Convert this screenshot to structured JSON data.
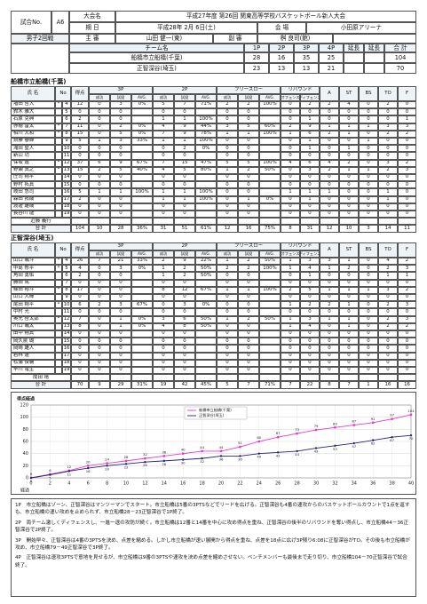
{
  "header": {
    "match_no_label": "試合No.",
    "match_no": "A6",
    "tournament_label": "大会名",
    "tournament": "平成27年度 第26回 関東高等学校バスケットボール新人大会",
    "date_label": "期 日",
    "date": "平成28年 2月 6日(土)",
    "venue_label": "会 場",
    "venue": "小田原アリーナ",
    "round": "男子2回戦",
    "referee_label": "主 審",
    "referee": "山田 健一(東)",
    "umpire_label": "副 審",
    "umpire": "桝 良司(館)"
  },
  "score": {
    "team_label": "チーム名",
    "period_labels": [
      "1P",
      "2P",
      "3P",
      "4P",
      "延長",
      "延長"
    ],
    "total_label": "合 計",
    "rows": [
      {
        "team": "船橋市立船橋(千葉)",
        "periods": [
          28,
          16,
          35,
          25
        ],
        "total": 104
      },
      {
        "team": "正智深谷(埼玉)",
        "periods": [
          23,
          13,
          13,
          21
        ],
        "total": 70
      }
    ]
  },
  "stat_headers": {
    "name": "氏 名",
    "no": "No",
    "points": "得点",
    "three": "3P",
    "two": "2P",
    "ft": "フリースロー",
    "reb": "リバウンド",
    "made": "成功",
    "att": "試投",
    "avg": "AVG.",
    "off": "オフェンス",
    "def": "ディフェンス",
    "a": "A",
    "st": "ST",
    "bs": "BS",
    "to": "TO",
    "f": "F"
  },
  "teams": [
    {
      "name": "船橋市立船橋(千葉)",
      "players": [
        {
          "name": "増田 哲大",
          "mark": "*",
          "no": 4,
          "stats": [
            12,
            0,
            3,
            "0%",
            5,
            7,
            "71%",
            2,
            2,
            "100%",
            0,
            2,
            2,
            4,
            0,
            2,
            0
          ]
        },
        {
          "name": "鈴木 雅大",
          "no": 5,
          "stats": [
            0,
            0,
            0,
            null,
            0,
            0,
            null,
            0,
            0,
            null,
            0,
            0,
            0,
            0,
            0,
            0,
            0
          ]
        },
        {
          "name": "石原 克典",
          "no": 6,
          "stats": [
            2,
            0,
            0,
            null,
            1,
            1,
            "100%",
            0,
            0,
            null,
            0,
            1,
            0,
            0,
            0,
            0,
            1
          ]
        },
        {
          "name": "赤穂 雷太",
          "mark": "*",
          "no": 7,
          "stats": [
            11,
            0,
            2,
            "0%",
            4,
            9,
            "44%",
            3,
            5,
            "60%",
            2,
            9,
            1,
            1,
            1,
            3,
            3
          ]
        },
        {
          "name": "相川 大和",
          "mark": "*",
          "no": 8,
          "stats": [
            15,
            0,
            5,
            "0%",
            7,
            9,
            "78%",
            1,
            1,
            "100%",
            1,
            6,
            2,
            1,
            0,
            2,
            2
          ]
        },
        {
          "name": "斎藤 春輝",
          "no": 9,
          "stats": [
            5,
            1,
            3,
            "33%",
            1,
            1,
            "100%",
            0,
            0,
            null,
            0,
            1,
            0,
            0,
            1,
            0,
            0
          ]
        },
        {
          "name": "滝田 堅人",
          "no": 10,
          "stats": [
            0,
            0,
            0,
            null,
            0,
            2,
            "0%",
            0,
            0,
            null,
            0,
            1,
            0,
            1,
            0,
            0,
            0
          ]
        },
        {
          "name": "新山 功",
          "no": 11,
          "stats": [
            0,
            0,
            0,
            null,
            0,
            0,
            null,
            0,
            0,
            null,
            0,
            0,
            0,
            0,
            0,
            0,
            0
          ]
        },
        {
          "name": "保坂 進",
          "mark": "*",
          "no": 12,
          "stats": [
            37,
            6,
            9,
            "67%",
            7,
            15,
            "47%",
            5,
            5,
            "100%",
            4,
            6,
            4,
            2,
            0,
            3,
            2
          ]
        },
        {
          "name": "野瀬 真之",
          "mark": "*",
          "no": 13,
          "stats": [
            15,
            2,
            5,
            "40%",
            4,
            5,
            "80%",
            1,
            2,
            "50%",
            0,
            3,
            2,
            1,
            1,
            2,
            3
          ]
        },
        {
          "name": "庄司 翔平",
          "no": 14,
          "stats": [
            0,
            0,
            0,
            null,
            0,
            0,
            null,
            0,
            0,
            null,
            0,
            0,
            0,
            0,
            0,
            0,
            0
          ]
        },
        {
          "name": "野村 拓真",
          "no": 15,
          "stats": [
            0,
            0,
            0,
            null,
            0,
            0,
            null,
            0,
            0,
            null,
            0,
            0,
            0,
            0,
            0,
            0,
            0
          ]
        },
        {
          "name": "岐田 悠司",
          "no": 16,
          "stats": [
            5,
            1,
            1,
            "100%",
            1,
            1,
            "100%",
            0,
            0,
            null,
            1,
            1,
            1,
            0,
            0,
            1,
            0
          ]
        },
        {
          "name": "森田 拓哉",
          "no": 17,
          "stats": [
            2,
            0,
            0,
            null,
            1,
            1,
            "100%",
            0,
            1,
            "0%",
            0,
            1,
            0,
            0,
            0,
            1,
            0
          ]
        },
        {
          "name": "渡邊 雄哉",
          "no": 18,
          "stats": [
            0,
            0,
            0,
            null,
            0,
            0,
            null,
            0,
            0,
            null,
            0,
            0,
            0,
            0,
            0,
            0,
            0
          ]
        },
        {
          "name": "長谷川 龍",
          "no": 19,
          "stats": [
            0,
            0,
            0,
            null,
            0,
            0,
            null,
            0,
            0,
            null,
            0,
            0,
            0,
            0,
            0,
            0,
            0
          ]
        }
      ],
      "coach": "近藤 義行",
      "total_label": "合 計",
      "total": [
        104,
        10,
        28,
        "36%",
        31,
        51,
        "61%",
        12,
        16,
        "75%",
        8,
        31,
        12,
        10,
        3,
        14,
        11
      ]
    },
    {
      "name": "正智深谷(埼玉)",
      "players": [
        {
          "name": "山口 颯斗",
          "mark": "*",
          "no": 4,
          "stats": [
            26,
            7,
            21,
            "33%",
            2,
            9,
            "22%",
            1,
            2,
            "50%",
            1,
            3,
            3,
            1,
            0,
            4,
            2
          ]
        },
        {
          "name": "中島 修平",
          "mark": "*",
          "no": 5,
          "stats": [
            4,
            0,
            3,
            "0%",
            1,
            2,
            "50%",
            2,
            2,
            "100%",
            1,
            4,
            1,
            2,
            0,
            2,
            3
          ]
        },
        {
          "name": "角田 勇佑",
          "no": 6,
          "stats": [
            2,
            0,
            0,
            null,
            1,
            2,
            "50%",
            0,
            0,
            null,
            0,
            1,
            0,
            0,
            0,
            1,
            1
          ]
        },
        {
          "name": "藤田 篤",
          "no": 7,
          "stats": [
            0,
            0,
            0,
            null,
            0,
            0,
            null,
            0,
            0,
            null,
            0,
            0,
            0,
            0,
            0,
            0,
            0
          ]
        },
        {
          "name": "篠田 裕斗",
          "mark": "*",
          "no": 8,
          "stats": [
            17,
            0,
            0,
            null,
            8,
            12,
            "67%",
            1,
            1,
            "100%",
            2,
            5,
            1,
            1,
            1,
            3,
            2
          ]
        },
        {
          "name": "山口 大暉",
          "no": 9,
          "stats": [
            0,
            0,
            0,
            null,
            0,
            0,
            null,
            0,
            0,
            null,
            0,
            0,
            0,
            0,
            0,
            0,
            0
          ]
        },
        {
          "name": "尾田 翔平",
          "mark": "*",
          "no": 10,
          "stats": [
            6,
            2,
            3,
            "67%",
            0,
            3,
            "0%",
            0,
            0,
            null,
            1,
            2,
            2,
            1,
            0,
            2,
            3
          ]
        },
        {
          "name": "中村 光",
          "no": 11,
          "stats": [
            0,
            0,
            0,
            null,
            0,
            0,
            null,
            0,
            0,
            null,
            0,
            0,
            0,
            0,
            0,
            0,
            0
          ]
        },
        {
          "name": "奥元 啓太郎",
          "mark": "*",
          "no": 12,
          "stats": [
            7,
            0,
            1,
            "0%",
            3,
            6,
            "50%",
            1,
            2,
            "50%",
            1,
            3,
            1,
            1,
            0,
            2,
            3
          ]
        },
        {
          "name": "川口 颯太",
          "no": 13,
          "stats": [
            8,
            0,
            1,
            "0%",
            4,
            8,
            "50%",
            0,
            0,
            null,
            1,
            4,
            0,
            1,
            0,
            2,
            2
          ]
        },
        {
          "name": "田中 翔真",
          "no": 14,
          "stats": [
            0,
            0,
            0,
            null,
            0,
            0,
            null,
            0,
            0,
            null,
            0,
            0,
            0,
            0,
            0,
            0,
            0
          ]
        },
        {
          "name": "岡久泉 瑚",
          "no": 15,
          "stats": [
            0,
            0,
            0,
            null,
            0,
            0,
            null,
            0,
            0,
            null,
            0,
            0,
            0,
            0,
            0,
            0,
            0
          ]
        },
        {
          "name": "岡崎 雄人",
          "no": 16,
          "stats": [
            0,
            0,
            0,
            null,
            0,
            0,
            null,
            0,
            0,
            null,
            0,
            0,
            0,
            0,
            0,
            0,
            0
          ]
        },
        {
          "name": "若林 蓮",
          "no": 17,
          "stats": [
            0,
            0,
            0,
            null,
            0,
            0,
            null,
            0,
            0,
            null,
            0,
            0,
            0,
            0,
            0,
            0,
            0
          ]
        },
        {
          "name": "松浦 俊輔",
          "no": 18,
          "stats": [
            0,
            0,
            0,
            null,
            0,
            0,
            null,
            0,
            0,
            null,
            0,
            0,
            0,
            0,
            0,
            0,
            0
          ]
        },
        {
          "name": "早川 竜生",
          "no": 19,
          "stats": [
            0,
            0,
            0,
            null,
            0,
            0,
            null,
            0,
            0,
            null,
            0,
            0,
            0,
            0,
            0,
            0,
            0
          ]
        }
      ],
      "coach": "成田 靖",
      "total_label": "合 計",
      "total": [
        70,
        9,
        29,
        "31%",
        19,
        42,
        "45%",
        5,
        7,
        "71%",
        7,
        22,
        8,
        7,
        1,
        16,
        16
      ]
    }
  ],
  "chart_data": {
    "type": "line",
    "title": "得点経過",
    "x_label": "経過",
    "x": [
      0,
      2,
      4,
      6,
      8,
      10,
      12,
      14,
      16,
      18,
      20,
      22,
      24,
      26,
      28,
      30,
      32,
      34,
      36,
      38,
      40
    ],
    "xlim": [
      0,
      40
    ],
    "xticks": [
      0,
      2,
      4,
      6,
      8,
      10,
      12,
      14,
      16,
      18,
      20,
      22,
      24,
      26,
      28,
      30,
      32,
      34,
      36,
      38,
      40
    ],
    "ylim": [
      0,
      120
    ],
    "yticks": [
      0,
      20,
      40,
      60,
      80,
      100,
      120
    ],
    "grid": true,
    "legend": "top",
    "series": [
      {
        "name": "船橋市立船橋(千葉)",
        "color": "#e83cc8",
        "values": [
          0,
          6,
          12,
          20,
          24,
          28,
          32,
          36,
          40,
          44,
          44,
          51,
          60,
          67,
          73,
          79,
          83,
          87,
          91,
          97,
          104
        ]
      },
      {
        "name": "正智深谷(埼玉)",
        "color": "#23237a",
        "values": [
          0,
          5,
          11,
          16,
          20,
          23,
          26,
          28,
          30,
          32,
          36,
          36,
          40,
          42,
          44,
          49,
          53,
          57,
          62,
          67,
          70
        ]
      }
    ]
  },
  "notes": [
    "1P　市立船橋はゾーン、正智深谷はマンツーマンでスタート。市立船橋は5番の3PTSなどでリードを広げる。正智深谷も4番の速攻からのバスケットボールカウントで1点を返すも、市立船橋の速い攻めを止められず、市立船橋28－23正智深谷で1P終了。",
    "2P　両チーム激しくディフェンスし、一進一退の攻防が続く。市立船橋は12番と14番を中心に攻め得点を重ね、正智深谷の後半のリバウンドを奪い得点し、市立船橋44－36正智深谷で2P終了。",
    "3P　開始早々、正智深谷は4番の3PTSを決め、点差を縮める。しかし市立船橋が速い展開から得点を重ね、点差を18点に広げ3P残り6:08に正智深谷がTO。その後も市立船橋が攻め、市立船橋79－49正智深谷で3P終了。",
    "4P　正智深谷は速攻3PTSで意地を見せるが、市立船橋は9番の3PTSや速攻を決め点差を縮めさせない。ベンチメンバーも最後まで走り切り、市立船橋104－70正智深谷で試合終了。"
  ]
}
